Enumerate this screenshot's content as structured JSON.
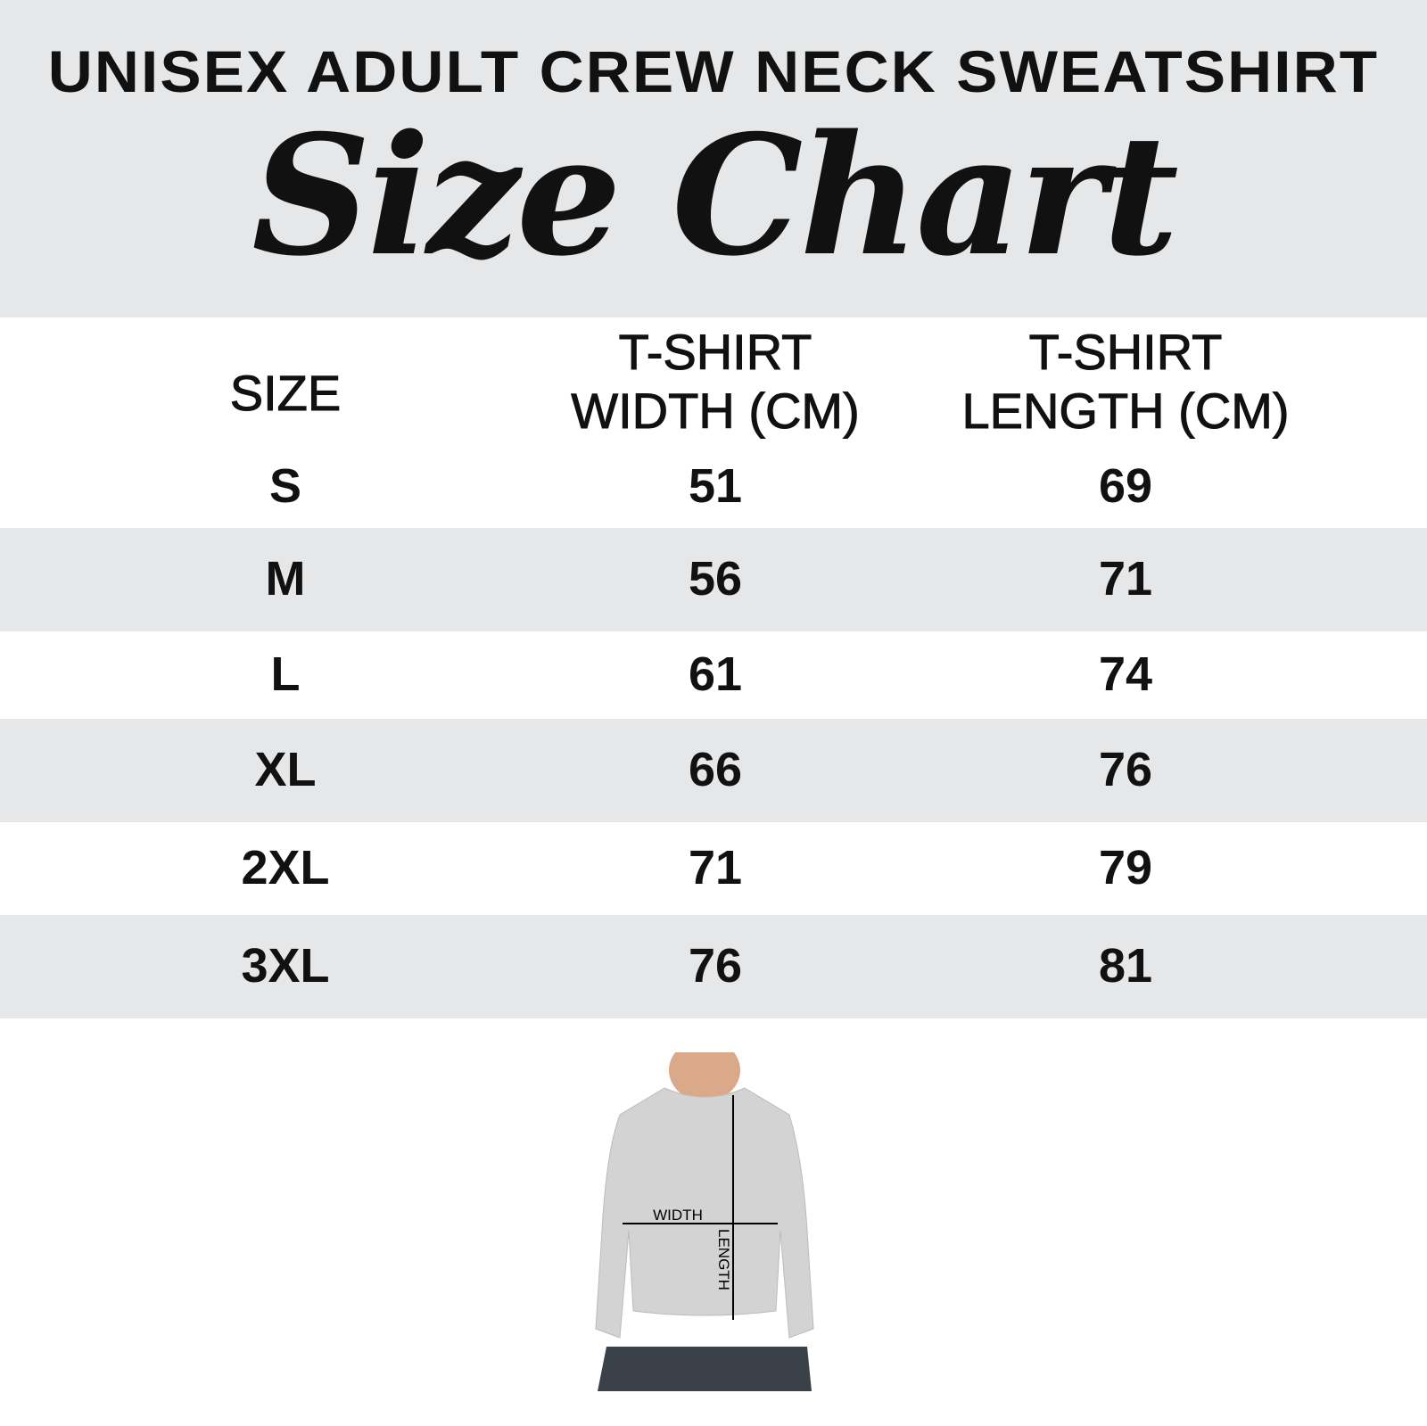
{
  "header": {
    "title": "UNISEX ADULT CREW NECK SWEATSHIRT",
    "script_title": "Size Chart"
  },
  "table": {
    "headers": [
      "SIZE",
      "T-SHIRT\nWIDTH (CM)",
      "T-SHIRT\nLENGTH (CM)"
    ],
    "header_lines": {
      "size": "SIZE",
      "width_1": "T-SHIRT",
      "width_2": "WIDTH (CM)",
      "length_1": "T-SHIRT",
      "length_2": "LENGTH (CM)"
    },
    "rows": [
      {
        "size": "S",
        "width": "51",
        "length": "69"
      },
      {
        "size": "M",
        "width": "56",
        "length": "71"
      },
      {
        "size": "L",
        "width": "61",
        "length": "74"
      },
      {
        "size": "XL",
        "width": "66",
        "length": "76"
      },
      {
        "size": "2XL",
        "width": "71",
        "length": "79"
      },
      {
        "size": "3XL",
        "width": "76",
        "length": "81"
      }
    ]
  },
  "diagram": {
    "width_label": "WIDTH",
    "length_label": "LENGTH"
  },
  "colors": {
    "band": "#e6e7e8",
    "text": "#111111",
    "garment": "#d3d3d3"
  }
}
